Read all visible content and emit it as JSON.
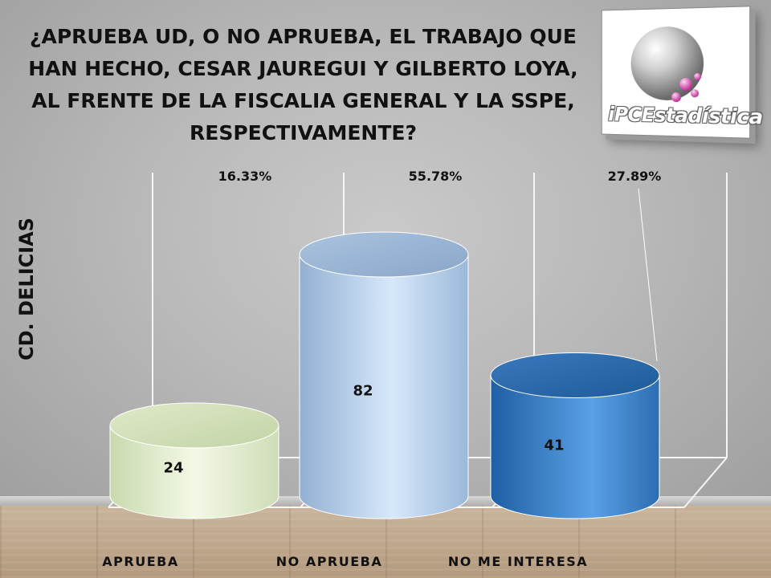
{
  "title": "¿APRUEBA UD, O NO APRUEBA, EL TRABAJO QUE HAN HECHO, CESAR JAUREGUI Y GILBERTO LOYA, AL FRENTE DE LA FISCALIA GENERAL Y LA SSPE, RESPECTIVAMENTE?",
  "logo": {
    "text": "iPCEstadística"
  },
  "colors": {
    "aprueba": "#e4efd0",
    "no_aprueba": "#b9d2ee",
    "no_me_interesa": "#3f88d4"
  },
  "chart_data": {
    "type": "bar",
    "ylabel": "CD. DELICIAS",
    "xlabel": "",
    "categories": [
      "APRUEBA",
      "NO APRUEBA",
      "NO ME INTERESA"
    ],
    "values": [
      24,
      82,
      41
    ],
    "value_labels": [
      "24",
      "82",
      "41"
    ],
    "percent_labels": [
      "16.33%",
      "55.78%",
      "27.89%"
    ],
    "percentages": [
      16.33,
      55.78,
      27.89
    ],
    "ylim": [
      0,
      100
    ],
    "grid": false,
    "style": "3d-cylinder"
  }
}
